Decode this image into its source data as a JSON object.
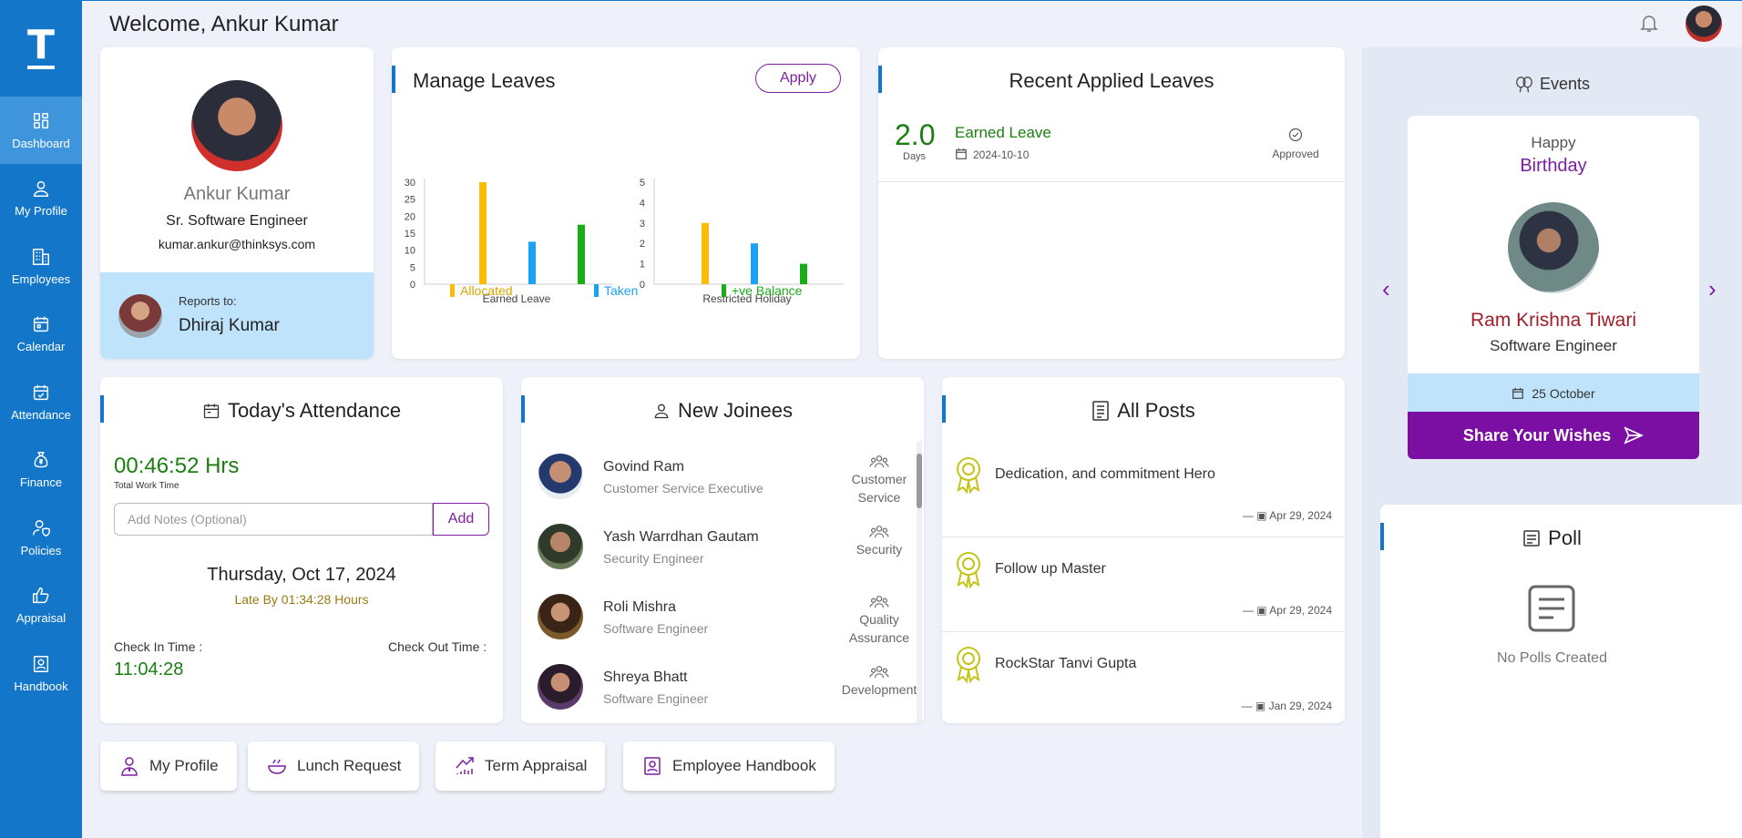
{
  "header": {
    "welcome": "Welcome, Ankur Kumar"
  },
  "sidebar": {
    "logo": "T",
    "items": [
      {
        "label": "Dashboard",
        "icon": "dashboard-icon"
      },
      {
        "label": "My Profile",
        "icon": "user-icon"
      },
      {
        "label": "Employees",
        "icon": "building-icon"
      },
      {
        "label": "Calendar",
        "icon": "calendar-icon"
      },
      {
        "label": "Attendance",
        "icon": "calendar-check-icon"
      },
      {
        "label": "Finance",
        "icon": "money-bag-icon"
      },
      {
        "label": "Policies",
        "icon": "policy-icon"
      },
      {
        "label": "Appraisal",
        "icon": "thumbs-up-icon"
      },
      {
        "label": "Handbook",
        "icon": "handbook-icon"
      }
    ]
  },
  "profile": {
    "name": "Ankur Kumar",
    "designation": "Sr. Software Engineer",
    "email": "kumar.ankur@thinksys.com",
    "reports_label": "Reports to:",
    "reports_to": "Dhiraj Kumar"
  },
  "leaves": {
    "title": "Manage Leaves",
    "apply": "Apply",
    "legend": [
      "Allocated",
      "Taken",
      "+ve Balance"
    ]
  },
  "chart_data": [
    {
      "type": "bar",
      "categories": [
        "Earned Leave"
      ],
      "series": [
        {
          "name": "Allocated",
          "values": [
            30
          ]
        },
        {
          "name": "Taken",
          "values": [
            12.5
          ]
        },
        {
          "name": "+ve Balance",
          "values": [
            17.5
          ]
        }
      ],
      "xlabel": "Earned Leave",
      "ylim": [
        0,
        30
      ],
      "yticks": [
        0,
        5,
        10,
        15,
        20,
        25,
        30
      ],
      "colors": [
        "#fbbc05",
        "#1aa3f0",
        "#1aad19"
      ]
    },
    {
      "type": "bar",
      "categories": [
        "Restricted Holiday"
      ],
      "series": [
        {
          "name": "Allocated",
          "values": [
            3
          ]
        },
        {
          "name": "Taken",
          "values": [
            2
          ]
        },
        {
          "name": "+ve Balance",
          "values": [
            1
          ]
        }
      ],
      "xlabel": "Restricted Holiday",
      "ylim": [
        0,
        5
      ],
      "yticks": [
        0,
        1,
        2,
        3,
        4,
        5
      ],
      "colors": [
        "#fbbc05",
        "#1aa3f0",
        "#1aad19"
      ]
    }
  ],
  "recent": {
    "title": "Recent Applied Leaves",
    "days": "2.0",
    "days_label": "Days",
    "type": "Earned Leave",
    "date": "2024-10-10",
    "status": "Approved"
  },
  "attendance": {
    "title": "Today's Attendance",
    "time": "00:46:52 Hrs",
    "time_label": "Total Work Time",
    "notes_placeholder": "Add Notes (Optional)",
    "add": "Add",
    "date": "Thursday, Oct 17, 2024",
    "late": "Late By 01:34:28 Hours",
    "checkin_label": "Check In Time :",
    "checkout_label": "Check Out Time :",
    "checkin": "11:04:28"
  },
  "joinees": {
    "title": "New Joinees",
    "items": [
      {
        "name": "Govind Ram",
        "role": "Customer Service Executive",
        "dept": "Customer Service"
      },
      {
        "name": "Yash Warrdhan Gautam",
        "role": "Security Engineer",
        "dept": "Security"
      },
      {
        "name": "Roli Mishra",
        "role": "Software Engineer",
        "dept": "Quality Assurance"
      },
      {
        "name": "Shreya Bhatt",
        "role": "Software Engineer",
        "dept": "Development"
      }
    ]
  },
  "posts": {
    "title": "All Posts",
    "items": [
      {
        "title": "Dedication, and commitment Hero",
        "date": "Apr 29, 2024"
      },
      {
        "title": "Follow up Master",
        "date": "Apr 29, 2024"
      },
      {
        "title": "RockStar Tanvi Gupta",
        "date": "Jan 29, 2024"
      }
    ]
  },
  "events": {
    "title": "Events",
    "happy": "Happy",
    "occasion": "Birthday",
    "name": "Ram Krishna Tiwari",
    "role": "Software Engineer",
    "date": "25 October",
    "share": "Share Your Wishes"
  },
  "poll": {
    "title": "Poll",
    "empty": "No Polls Created"
  },
  "quick_links": [
    "My Profile",
    "Lunch Request",
    "Term Appraisal",
    "Employee Handbook"
  ]
}
